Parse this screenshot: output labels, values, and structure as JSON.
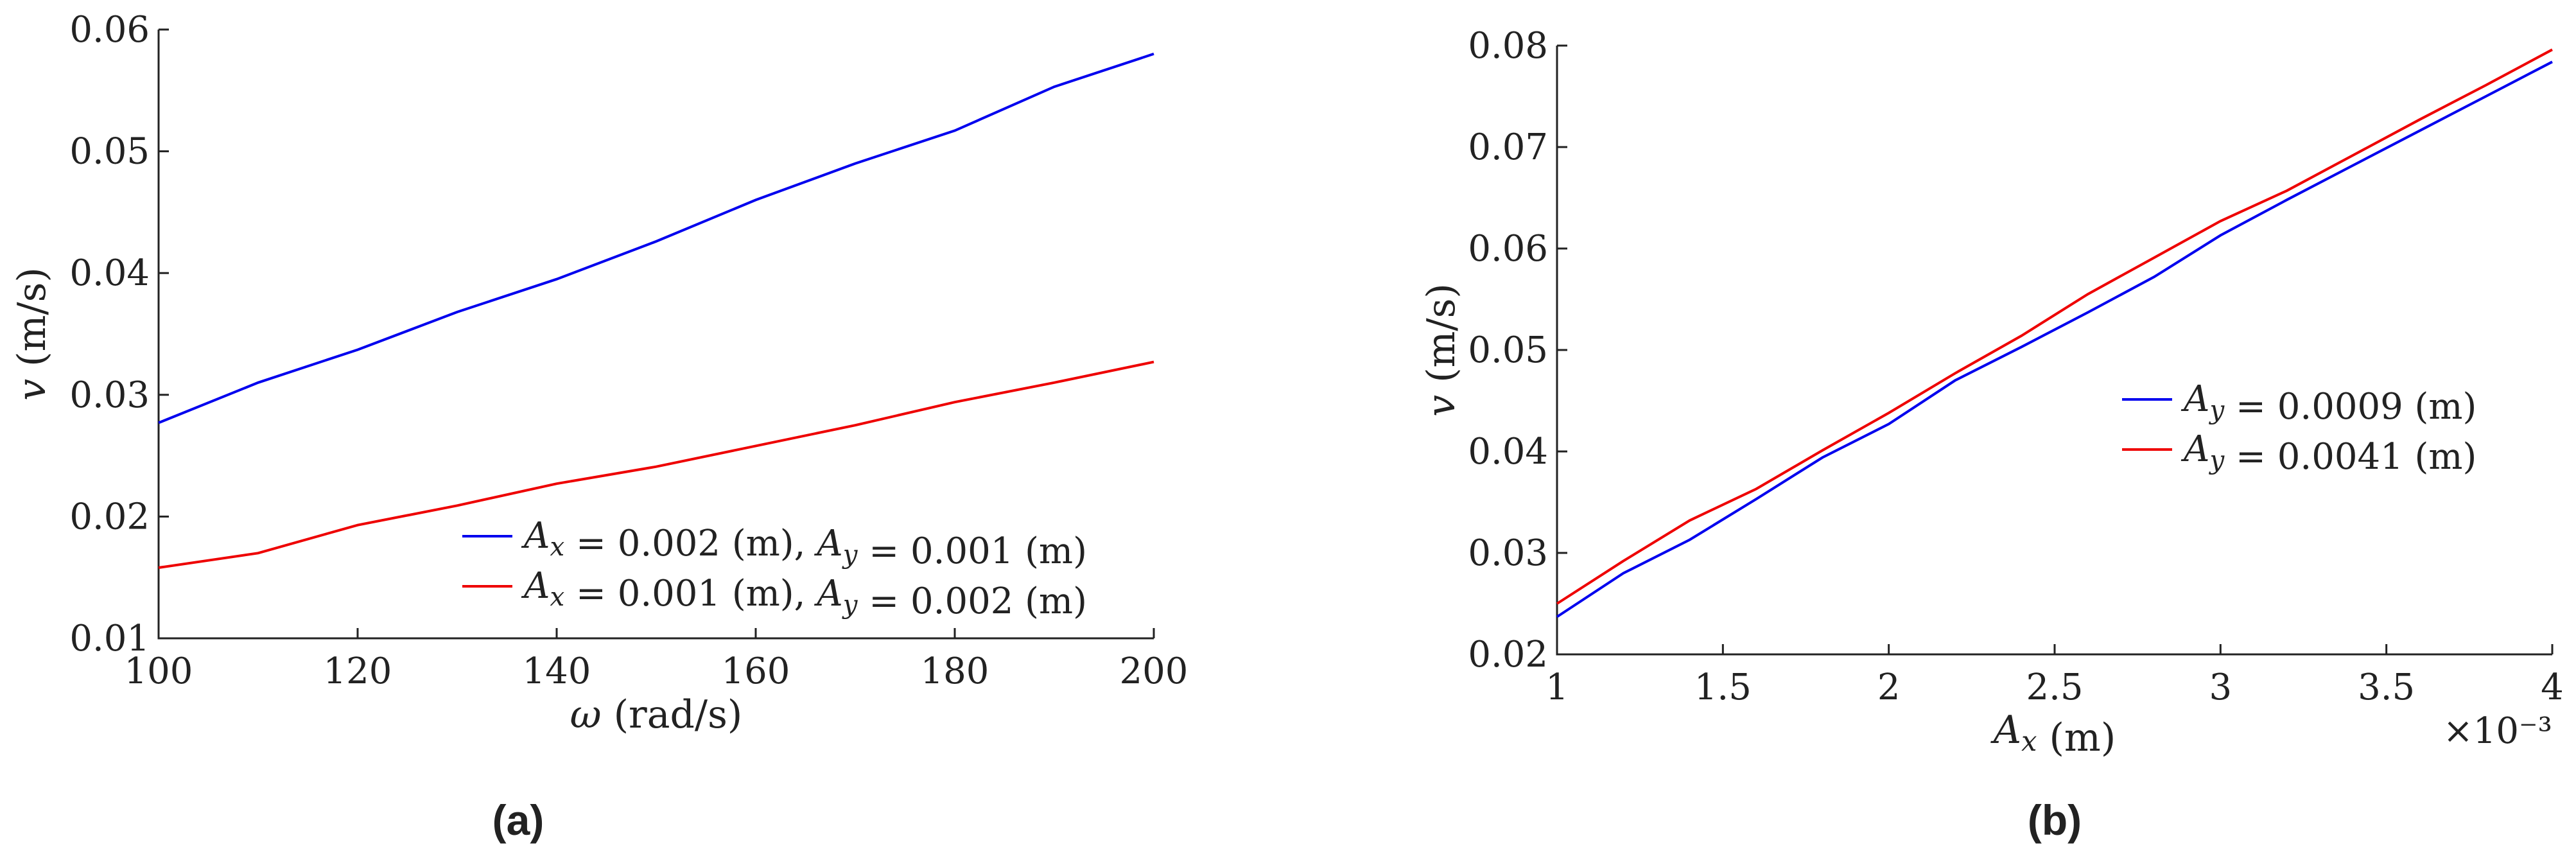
{
  "chart_data": [
    {
      "type": "line",
      "panel_label": "(a)",
      "xlabel": "ω (rad/s)",
      "ylabel": "v (m/s)",
      "xlim": [
        100,
        200
      ],
      "ylim": [
        0.01,
        0.06
      ],
      "xticks": [
        100,
        120,
        140,
        160,
        180,
        200
      ],
      "xtick_labels": [
        "100",
        "120",
        "140",
        "160",
        "180",
        "200"
      ],
      "yticks": [
        0.01,
        0.02,
        0.03,
        0.04,
        0.05,
        0.06
      ],
      "ytick_labels": [
        "0.01",
        "0.02",
        "0.03",
        "0.04",
        "0.05",
        "0.06"
      ],
      "grid": false,
      "legend_position": "bottom-right",
      "x": [
        100,
        110,
        120,
        130,
        140,
        150,
        160,
        170,
        180,
        190,
        200
      ],
      "series": [
        {
          "name": "Ax = 0.002 (m), Ay = 0.001 (m)",
          "color": "#0000ee",
          "values": [
            0.0277,
            0.031,
            0.0337,
            0.0368,
            0.0395,
            0.0426,
            0.046,
            0.049,
            0.0517,
            0.0553,
            0.058
          ]
        },
        {
          "name": "Ax = 0.001 (m), Ay = 0.002 (m)",
          "color": "#ee0000",
          "values": [
            0.0158,
            0.017,
            0.0193,
            0.0209,
            0.0227,
            0.0241,
            0.0258,
            0.0275,
            0.0294,
            0.031,
            0.0327
          ]
        }
      ]
    },
    {
      "type": "line",
      "panel_label": "(b)",
      "xlabel": "Ax (m)",
      "ylabel": "v (m/s)",
      "xlim": [
        0.001,
        0.004
      ],
      "ylim": [
        0.02,
        0.08
      ],
      "xticks": [
        0.001,
        0.0015,
        0.002,
        0.0025,
        0.003,
        0.0035,
        0.004
      ],
      "xtick_labels": [
        "1",
        "1.5",
        "2",
        "2.5",
        "3",
        "3.5",
        "4"
      ],
      "x_multiplier": "×10⁻³",
      "yticks": [
        0.02,
        0.03,
        0.04,
        0.05,
        0.06,
        0.07,
        0.08
      ],
      "ytick_labels": [
        "0.02",
        "0.03",
        "0.04",
        "0.05",
        "0.06",
        "0.07",
        "0.08"
      ],
      "grid": false,
      "legend_position": "center-right",
      "x": [
        0.001,
        0.0012,
        0.0014,
        0.0016,
        0.0018,
        0.002,
        0.0022,
        0.0024,
        0.0026,
        0.0028,
        0.003,
        0.0032,
        0.0034,
        0.0036,
        0.0038,
        0.004
      ],
      "series": [
        {
          "name": "Ay = 0.0009 (m)",
          "color": "#0000ee",
          "values": [
            0.0237,
            0.028,
            0.0313,
            0.0353,
            0.0394,
            0.0427,
            0.047,
            0.0503,
            0.0537,
            0.0572,
            0.0613,
            0.0648,
            0.0682,
            0.0716,
            0.075,
            0.0784
          ]
        },
        {
          "name": "Ay = 0.0041 (m)",
          "color": "#ee0000",
          "values": [
            0.025,
            0.0292,
            0.0332,
            0.0363,
            0.0401,
            0.0438,
            0.0477,
            0.0514,
            0.0555,
            0.0591,
            0.0627,
            0.0657,
            0.0692,
            0.0727,
            0.0761,
            0.0796
          ]
        }
      ]
    }
  ]
}
